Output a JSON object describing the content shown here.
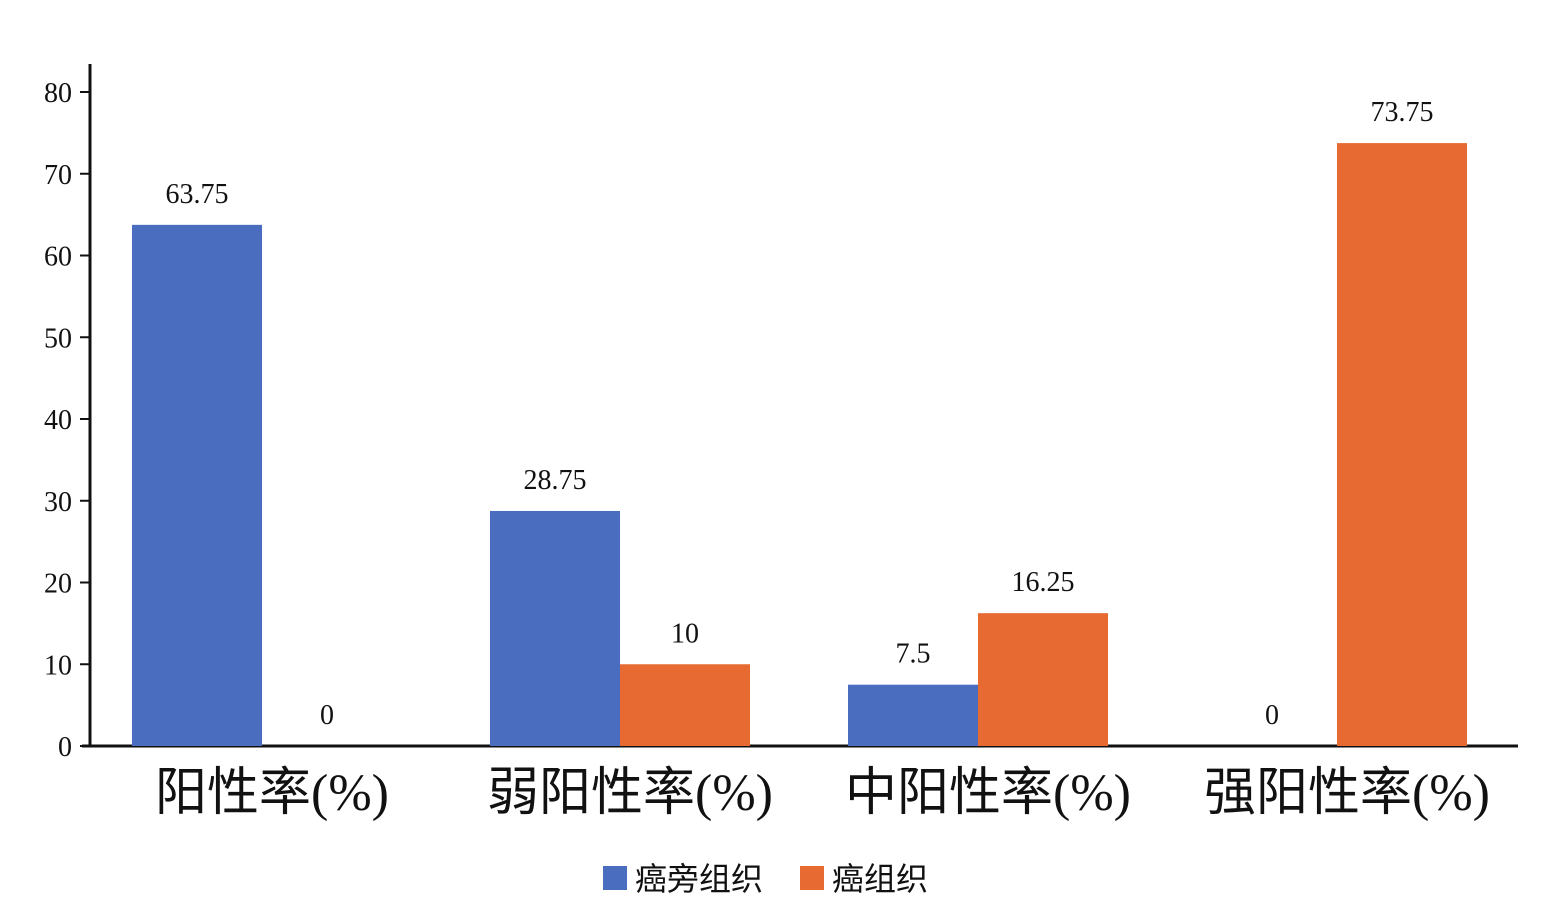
{
  "chart_data": {
    "type": "bar",
    "title": "",
    "xlabel": "",
    "ylabel": "",
    "categories": [
      "阳性率(%)",
      "弱阳性率(%)",
      "中阳性率(%)",
      "强阳性率(%)"
    ],
    "series": [
      {
        "name": "癌旁组织",
        "color": "#4a6dbf",
        "values": [
          63.75,
          28.75,
          7.5,
          0
        ]
      },
      {
        "name": "癌组织",
        "color": "#e66a32",
        "values": [
          0,
          10,
          16.25,
          73.75
        ]
      }
    ],
    "value_labels": [
      [
        "63.75",
        "28.75",
        "7.5",
        "0"
      ],
      [
        "0",
        "10",
        "16.25",
        "73.75"
      ]
    ],
    "ylim": [
      0,
      80
    ],
    "yticks": [
      0,
      10,
      20,
      30,
      40,
      50,
      60,
      70,
      80
    ],
    "grid": false,
    "legend": {
      "position": "bottom"
    }
  }
}
